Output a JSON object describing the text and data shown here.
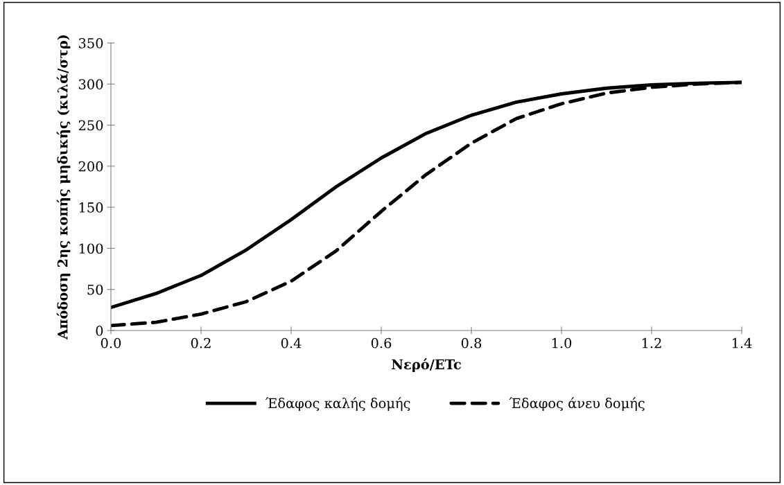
{
  "chart_data": {
    "type": "line",
    "xlabel": "Νερό/ETc",
    "ylabel": "Απόδοση 2ης κοπής μηδικής (κιλά/στρ)",
    "x": [
      0.0,
      0.1,
      0.2,
      0.3,
      0.4,
      0.5,
      0.6,
      0.7,
      0.8,
      0.9,
      1.0,
      1.1,
      1.2,
      1.3,
      1.4
    ],
    "series": [
      {
        "name": "Έδαφος καλής δομής",
        "color": "#000000",
        "line_style": "solid",
        "values": [
          28,
          45,
          67,
          98,
          135,
          175,
          210,
          240,
          262,
          278,
          288,
          295,
          299,
          301,
          302
        ]
      },
      {
        "name": "Έδαφος άνευ δομής",
        "color": "#000000",
        "line_style": "dashed",
        "values": [
          6,
          10,
          20,
          35,
          60,
          97,
          145,
          190,
          228,
          258,
          276,
          289,
          296,
          300,
          302
        ]
      }
    ],
    "xlim": [
      0,
      1.4
    ],
    "xticks": [
      {
        "value": 0,
        "label": "0.0"
      },
      {
        "value": 0.2,
        "label": "0.2"
      },
      {
        "value": 0.4,
        "label": "0.4"
      },
      {
        "value": 0.6,
        "label": "0.6"
      },
      {
        "value": 0.8,
        "label": "0.8"
      },
      {
        "value": 1.0,
        "label": "1.0"
      },
      {
        "value": 1.2,
        "label": "1.2"
      },
      {
        "value": 1.4,
        "label": "1.4"
      }
    ],
    "ylim": [
      0,
      350
    ],
    "yticks": [
      0,
      50,
      100,
      150,
      200,
      250,
      300,
      350
    ],
    "grid": false,
    "legend": "bottom",
    "marker": "none"
  }
}
